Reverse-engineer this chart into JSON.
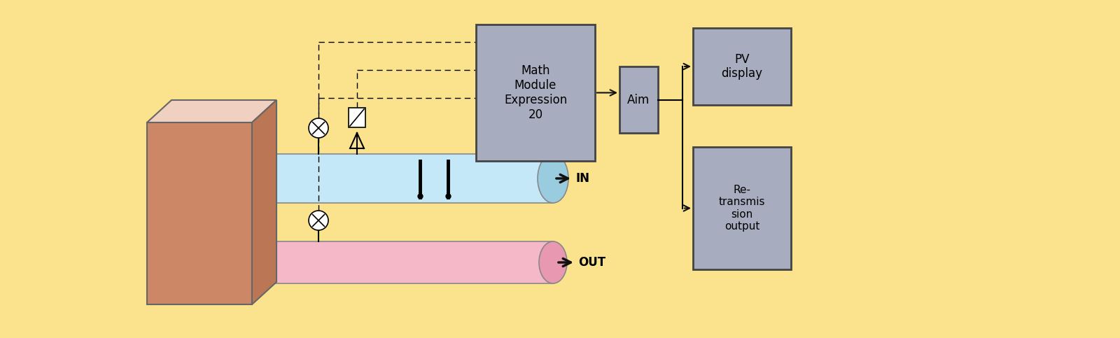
{
  "bg_color": "#FAE38C",
  "box_fill": "#A8ACBF",
  "box_edge": "#444444",
  "tube_blue_fill": "#C5E8F8",
  "tube_blue_edge": "#888888",
  "tube_pink_fill": "#F5B8C8",
  "tube_pink_edge": "#888888",
  "block_front_fill": "#CC8866",
  "block_top_fill": "#F0D0C0",
  "block_side_fill": "#BB7755",
  "block_edge": "#666666",
  "math_module_text": "Math\nModule\nExpression\n20",
  "aim_text": "Aim",
  "pv_text": "PV\ndisplay",
  "retransmit_text": "Re-\ntransmis\nsion\noutput",
  "in_label": "IN",
  "out_label": "OUT",
  "arrow_color": "#111111",
  "line_color": "#111111",
  "sensor_fill": "#FFFFFF",
  "fm_fill": "#FFFFFF"
}
